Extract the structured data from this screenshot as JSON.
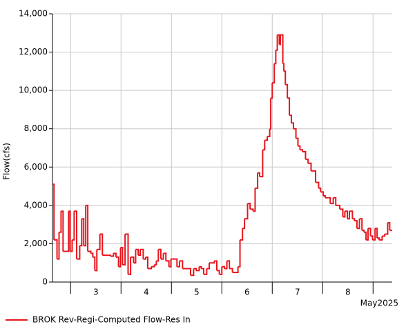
{
  "chart_data": {
    "type": "step",
    "ylabel": "Flow(cfs)",
    "xlabel": "May2025",
    "xlim": [
      2.64,
      9.38
    ],
    "xticks": [
      3,
      4,
      5,
      6,
      7,
      8,
      9
    ],
    "day_labels": [
      {
        "value": 3.5,
        "label": "3"
      },
      {
        "value": 4.5,
        "label": "4"
      },
      {
        "value": 5.5,
        "label": "5"
      },
      {
        "value": 6.5,
        "label": "6"
      },
      {
        "value": 7.5,
        "label": "7"
      },
      {
        "value": 8.5,
        "label": "8"
      }
    ],
    "ylim": [
      0,
      14000
    ],
    "yticks": [
      0,
      {
        "value": 2000,
        "label": "2,000"
      },
      {
        "value": 4000,
        "label": "4,000"
      },
      {
        "value": 6000,
        "label": "6,000"
      },
      {
        "value": 8000,
        "label": "8,000"
      },
      {
        "value": 10000,
        "label": "10,000"
      },
      {
        "value": 12000,
        "label": "12,000"
      },
      {
        "value": 14000,
        "label": "14,000"
      }
    ],
    "grid": true,
    "legend": "bottom-left",
    "x": [
      2.64,
      2.67,
      2.73,
      2.77,
      2.81,
      2.85,
      2.92,
      2.96,
      2.99,
      3.03,
      3.07,
      3.12,
      3.18,
      3.22,
      3.26,
      3.3,
      3.34,
      3.4,
      3.44,
      3.48,
      3.52,
      3.58,
      3.63,
      3.73,
      3.79,
      3.85,
      3.9,
      3.95,
      3.99,
      4.03,
      4.08,
      4.14,
      4.19,
      4.25,
      4.29,
      4.34,
      4.38,
      4.44,
      4.49,
      4.53,
      4.6,
      4.66,
      4.7,
      4.74,
      4.79,
      4.84,
      4.89,
      4.95,
      4.99,
      5.11,
      5.16,
      5.22,
      5.34,
      5.38,
      5.44,
      5.49,
      5.55,
      5.59,
      5.64,
      5.7,
      5.75,
      5.85,
      5.9,
      5.95,
      6.0,
      6.05,
      6.1,
      6.15,
      6.21,
      6.32,
      6.36,
      6.41,
      6.45,
      6.51,
      6.56,
      6.62,
      6.66,
      6.71,
      6.75,
      6.81,
      6.85,
      6.9,
      6.95,
      6.97,
      7.0,
      7.04,
      7.07,
      7.1,
      7.14,
      7.16,
      7.21,
      7.23,
      7.26,
      7.3,
      7.34,
      7.38,
      7.42,
      7.47,
      7.51,
      7.55,
      7.6,
      7.66,
      7.71,
      7.77,
      7.82,
      7.86,
      7.92,
      7.96,
      8.01,
      8.05,
      8.11,
      8.15,
      8.21,
      8.26,
      8.3,
      8.34,
      8.4,
      8.44,
      8.49,
      8.53,
      8.59,
      8.63,
      8.68,
      8.73,
      8.78,
      8.82,
      8.86,
      8.9,
      8.95,
      8.99,
      9.04,
      9.08,
      9.12,
      9.18,
      9.23,
      9.29,
      9.33
    ],
    "series": [
      {
        "name": "BROK Rev-Regi-Computed Flow-Res In",
        "color": "#e8141c",
        "values": [
          5100,
          2200,
          1200,
          2600,
          3700,
          1600,
          1600,
          3700,
          1600,
          2200,
          3700,
          1200,
          1900,
          3300,
          1900,
          4000,
          1600,
          1500,
          1300,
          600,
          1700,
          2500,
          1400,
          1400,
          1350,
          1500,
          1300,
          800,
          1800,
          900,
          2500,
          400,
          1300,
          1000,
          1700,
          1400,
          1700,
          1200,
          1300,
          700,
          800,
          900,
          1100,
          1700,
          1200,
          1500,
          1100,
          800,
          1200,
          800,
          1100,
          700,
          700,
          350,
          700,
          600,
          800,
          700,
          400,
          700,
          1000,
          1100,
          600,
          400,
          800,
          700,
          1100,
          700,
          500,
          800,
          2200,
          2800,
          3300,
          4100,
          3800,
          3700,
          4900,
          5700,
          5500,
          6900,
          7400,
          7600,
          8000,
          9600,
          10400,
          11400,
          12100,
          12900,
          12400,
          12900,
          11400,
          11000,
          10300,
          9600,
          8700,
          8300,
          8000,
          7500,
          7100,
          6900,
          6800,
          6400,
          6200,
          5800,
          5800,
          5200,
          4900,
          4700,
          4500,
          4400,
          4400,
          4100,
          4400,
          4000,
          4000,
          3800,
          3400,
          3700,
          3300,
          3700,
          3300,
          3200,
          2800,
          3300,
          2700,
          2600,
          2200,
          2800,
          2400,
          2200,
          2800,
          2300,
          2200,
          2400,
          2500,
          3100,
          2700
        ]
      }
    ]
  }
}
